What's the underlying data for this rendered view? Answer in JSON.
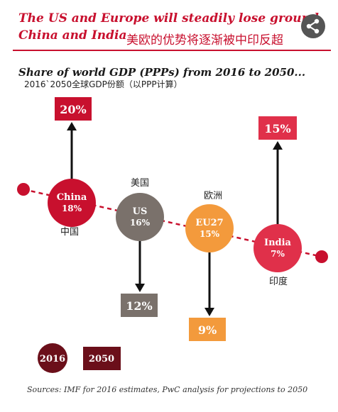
{
  "header": {
    "title_line1": "The US and Europe will steadily lose ground",
    "title_line2": "China and India",
    "title_cn": "美欧的优势将逐渐被中印反超",
    "share_icon": "share-icon"
  },
  "subtitle": "Share of world GDP (PPPs) from 2016 to 2050...",
  "subtitle_cn": "2016`2050全球GDP份额（以PPP计算）",
  "legend": {
    "y2016": "2016",
    "y2050": "2050"
  },
  "source": "Sources: IMF for 2016 estimates, PwC analysis for projections to 2050",
  "colors": {
    "title": "#c8102e",
    "china": "#c8102e",
    "us": "#7a716b",
    "eu": "#f39a3c",
    "india": "#e0304a",
    "dark": "#6b0f1a"
  },
  "chart_data": {
    "type": "other",
    "title": "Share of world GDP (PPPs) from 2016 to 2050...",
    "units": "% share of world GDP (PPP)",
    "years": [
      "2016",
      "2050"
    ],
    "series": [
      {
        "name": "China",
        "label_cn": "中国",
        "value_2016": 18,
        "value_2050": 20,
        "label_2016": "18%",
        "label_2050": "20%",
        "color": "#c8102e"
      },
      {
        "name": "US",
        "label_cn": "美国",
        "value_2016": 16,
        "value_2050": 12,
        "label_2016": "16%",
        "label_2050": "12%",
        "color": "#7a716b"
      },
      {
        "name": "EU27",
        "label_cn": "欧洲",
        "value_2016": 15,
        "value_2050": 9,
        "label_2016": "15%",
        "label_2050": "9%",
        "color": "#f39a3c"
      },
      {
        "name": "India",
        "label_cn": "印度",
        "value_2016": 7,
        "value_2050": 15,
        "label_2016": "7%",
        "label_2050": "15%",
        "color": "#e0304a"
      }
    ]
  }
}
